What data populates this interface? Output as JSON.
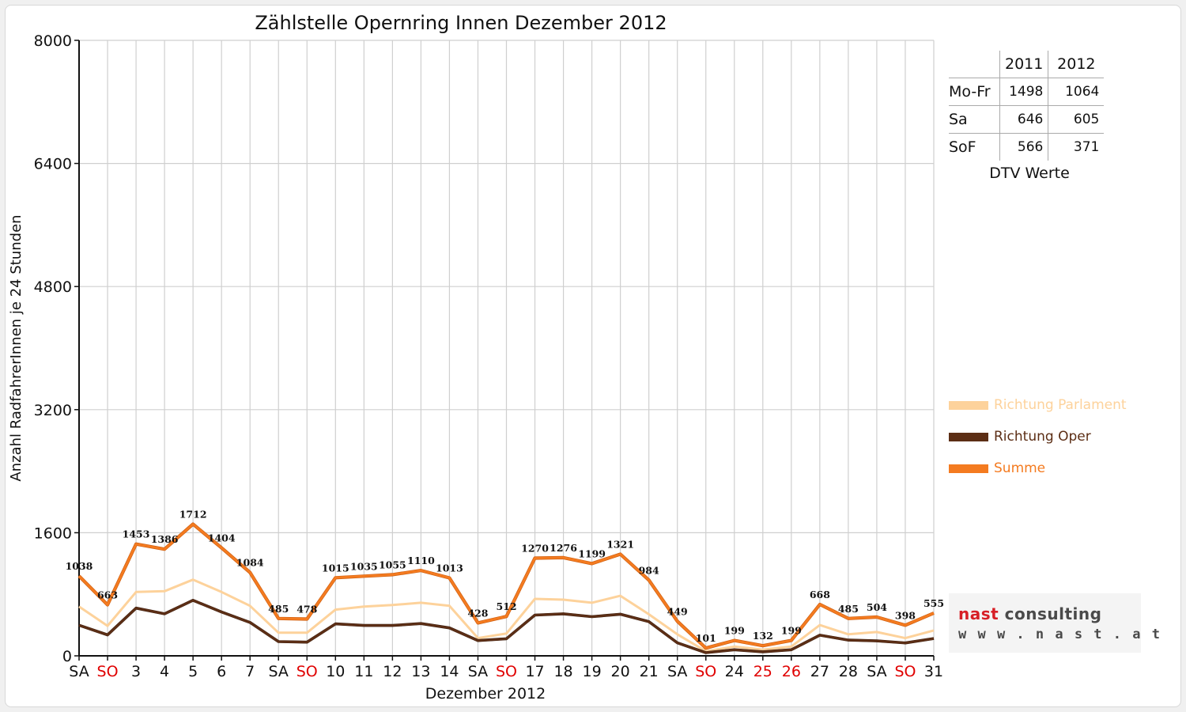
{
  "chart_data": {
    "type": "line",
    "title": "Zählstelle Opernring Innen Dezember 2012",
    "xlabel": "Dezember 2012",
    "ylabel": "Anzahl RadfahrerInnen je 24 Stunden",
    "ylim": [
      0,
      8000
    ],
    "yticks": [
      "0",
      "1600",
      "3200",
      "4800",
      "6400",
      "8000"
    ],
    "ytick_values": [
      0,
      1600,
      3200,
      4800,
      6400,
      8000
    ],
    "categories": [
      "SA",
      "SO",
      "3",
      "4",
      "5",
      "6",
      "7",
      "SA",
      "SO",
      "10",
      "11",
      "12",
      "13",
      "14",
      "SA",
      "SO",
      "17",
      "18",
      "19",
      "20",
      "21",
      "SA",
      "SO",
      "24",
      "25",
      "26",
      "27",
      "28",
      "SA",
      "SO",
      "31"
    ],
    "red_categories": [
      1,
      8,
      15,
      22,
      24,
      25,
      29
    ],
    "grid": true,
    "legend_position": "right",
    "series": [
      {
        "name": "Richtung Parlament",
        "color": "#fdd29b",
        "values": [
          640,
          390,
          830,
          840,
          990,
          830,
          650,
          300,
          300,
          600,
          640,
          660,
          690,
          650,
          230,
          290,
          740,
          730,
          690,
          780,
          540,
          280,
          60,
          120,
          80,
          120,
          400,
          280,
          310,
          230,
          330
        ]
      },
      {
        "name": "Richtung Oper",
        "color": "#5c2e15",
        "values": [
          398,
          273,
          620,
          546,
          722,
          570,
          434,
          185,
          178,
          415,
          395,
          395,
          420,
          363,
          198,
          222,
          530,
          546,
          509,
          541,
          444,
          169,
          41,
          79,
          52,
          79,
          268,
          205,
          194,
          168,
          225
        ]
      },
      {
        "name": "Summe",
        "color": "#f47b20",
        "values": [
          1038,
          663,
          1453,
          1386,
          1712,
          1404,
          1084,
          485,
          478,
          1015,
          1035,
          1055,
          1110,
          1013,
          428,
          512,
          1270,
          1276,
          1199,
          1321,
          984,
          449,
          101,
          199,
          132,
          199,
          668,
          485,
          504,
          398,
          555
        ],
        "labels": [
          "1038",
          "663",
          "1453",
          "1386",
          "1712",
          "1404",
          "1084",
          "485",
          "478",
          "1015",
          "1035",
          "1055",
          "1110",
          "1013",
          "428",
          "512",
          "1270",
          "1276",
          "1199",
          "1321",
          "984",
          "449",
          "101",
          "199",
          "132",
          "199",
          "668",
          "485",
          "504",
          "398",
          "555"
        ]
      }
    ]
  },
  "dtv_table": {
    "header": [
      "",
      "2011",
      "2012"
    ],
    "rows": [
      {
        "label": "Mo-Fr",
        "v2011": "1498",
        "v2012": "1064"
      },
      {
        "label": "Sa",
        "v2011": "646",
        "v2012": "605"
      },
      {
        "label": "SoF",
        "v2011": "566",
        "v2012": "371"
      }
    ],
    "caption": "DTV Werte"
  },
  "logo": {
    "name_part1": "nast",
    "name_part2": " consulting",
    "url": "w w w . n a s t . a t",
    "color_red": "#d71f26",
    "color_gray": "#4a4a4a"
  }
}
